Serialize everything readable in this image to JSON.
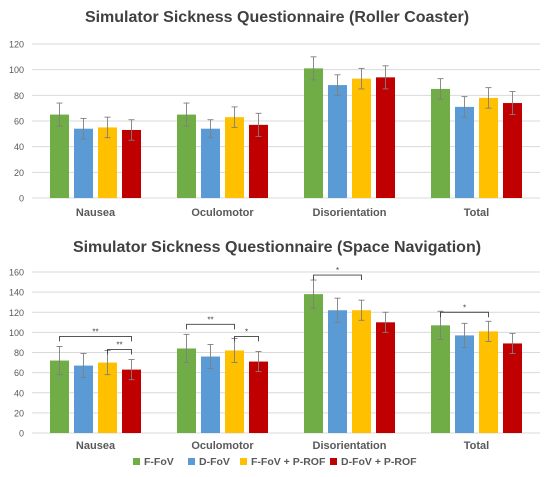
{
  "chart_data": [
    {
      "type": "bar",
      "title": "Simulator Sickness Questionnaire (Roller Coaster)",
      "categories": [
        "Nausea",
        "Oculomotor",
        "Disorientation",
        "Total"
      ],
      "ylim": [
        0,
        120
      ],
      "yticks": [
        0,
        20,
        40,
        60,
        80,
        100,
        120
      ],
      "grid": true,
      "legend_position": "none",
      "series": [
        {
          "name": "F-FoV",
          "values": [
            65,
            65,
            101,
            85
          ],
          "errors": [
            9,
            9,
            9,
            8
          ]
        },
        {
          "name": "D-FoV",
          "values": [
            54,
            54,
            88,
            71
          ],
          "errors": [
            8,
            7,
            8,
            8
          ]
        },
        {
          "name": "F-FoV + P-ROF",
          "values": [
            55,
            63,
            93,
            78
          ],
          "errors": [
            8,
            8,
            8,
            8
          ]
        },
        {
          "name": "D-FoV + P-ROF",
          "values": [
            53,
            57,
            94,
            74
          ],
          "errors": [
            8,
            9,
            9,
            9
          ]
        }
      ],
      "significance": []
    },
    {
      "type": "bar",
      "title": "Simulator Sickness Questionnaire  (Space Navigation)",
      "categories": [
        "Nausea",
        "Oculomotor",
        "Disorientation",
        "Total"
      ],
      "ylim": [
        0,
        160
      ],
      "yticks": [
        0,
        20,
        40,
        60,
        80,
        100,
        120,
        140,
        160
      ],
      "grid": true,
      "legend_position": "bottom",
      "series": [
        {
          "name": "F-FoV",
          "values": [
            72,
            84,
            138,
            107
          ],
          "errors": [
            14,
            14,
            14,
            14
          ]
        },
        {
          "name": "D-FoV",
          "values": [
            67,
            76,
            122,
            97
          ],
          "errors": [
            12,
            12,
            12,
            12
          ]
        },
        {
          "name": "F-FoV + P-ROF",
          "values": [
            70,
            82,
            122,
            101
          ],
          "errors": [
            12,
            12,
            10,
            10
          ]
        },
        {
          "name": "D-FoV + P-ROF",
          "values": [
            63,
            71,
            110,
            89
          ],
          "errors": [
            10,
            10,
            10,
            10
          ]
        }
      ],
      "significance": [
        {
          "category": 0,
          "from": 0,
          "to": 3,
          "y": 96,
          "label": "**"
        },
        {
          "category": 0,
          "from": 2,
          "to": 3,
          "y": 83,
          "label": "**"
        },
        {
          "category": 1,
          "from": 0,
          "to": 2,
          "y": 108,
          "label": "**"
        },
        {
          "category": 1,
          "from": 2,
          "to": 3,
          "y": 96,
          "label": "*"
        },
        {
          "category": 2,
          "from": 0,
          "to": 2,
          "y": 157,
          "label": "*"
        },
        {
          "category": 3,
          "from": 0,
          "to": 2,
          "y": 120,
          "label": "*"
        }
      ]
    }
  ],
  "legend": {
    "items": [
      {
        "label": "F-FoV",
        "color": "#70ad47"
      },
      {
        "label": "D-FoV",
        "color": "#5b9bd5"
      },
      {
        "label": "F-FoV + P-ROF",
        "color": "#ffc000"
      },
      {
        "label": "D-FoV + P-ROF",
        "color": "#c00000"
      }
    ]
  },
  "colors": {
    "F-FoV": "#70ad47",
    "D-FoV": "#5b9bd5",
    "F-FoV + P-ROF": "#ffc000",
    "D-FoV + P-ROF": "#c00000",
    "grid": "#d9d9d9",
    "axis_text": "#595959",
    "title": "#404040"
  }
}
